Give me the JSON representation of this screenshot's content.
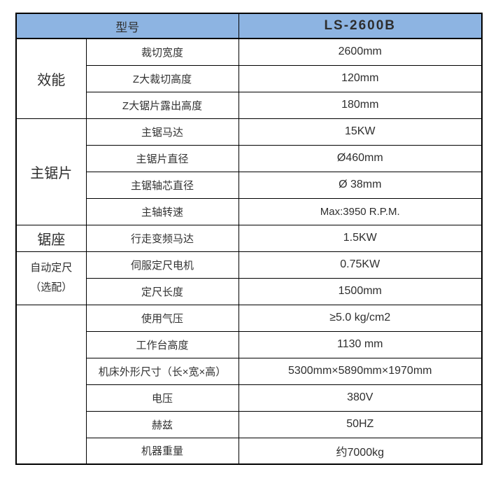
{
  "colors": {
    "header_bg": "#8DB4E2",
    "border": "#000000",
    "text": "#333333"
  },
  "table": {
    "header": {
      "model_label": "型号",
      "model_value": "LS-2600B"
    },
    "groups": [
      {
        "label": "效能",
        "rows": [
          {
            "name": "裁切宽度",
            "value": "2600mm"
          },
          {
            "name": "Z大裁切高度",
            "value": "120mm"
          },
          {
            "name": "Z大锯片露出高度",
            "value": "180mm"
          }
        ]
      },
      {
        "label": "主锯片",
        "rows": [
          {
            "name": "主锯马达",
            "value": "15KW"
          },
          {
            "name": "主锯片直径",
            "value": "Ø460mm"
          },
          {
            "name": "主锯轴芯直径",
            "value": "Ø 38mm"
          },
          {
            "name": "主轴转速",
            "value": "Max:3950 R.P.M."
          }
        ]
      },
      {
        "label": "锯座",
        "rows": [
          {
            "name": "行走变频马达",
            "value": "1.5KW"
          }
        ]
      },
      {
        "label": "自动定尺",
        "label2": "（选配）",
        "rows": [
          {
            "name": "伺服定尺电机",
            "value": "0.75KW"
          },
          {
            "name": "定尺长度",
            "value": "1500mm"
          }
        ]
      },
      {
        "label": "",
        "rows": [
          {
            "name": "使用气压",
            "value": "≥5.0 kg/cm2"
          },
          {
            "name": "工作台高度",
            "value": "1130 mm"
          },
          {
            "name": "机床外形尺寸（长×宽×高）",
            "value": "5300mm×5890mm×1970mm"
          },
          {
            "name": "电压",
            "value": "380V"
          },
          {
            "name": "赫兹",
            "value": "50HZ"
          },
          {
            "name": "机器重量",
            "value": "约7000kg"
          }
        ]
      }
    ]
  }
}
